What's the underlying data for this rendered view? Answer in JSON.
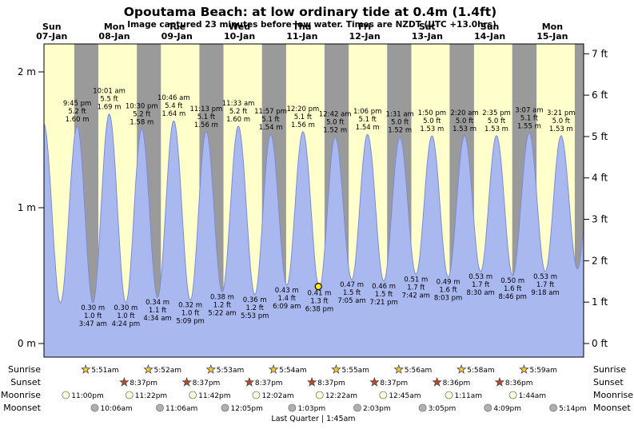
{
  "title": "Opoutama Beach: at low  ordinary tide at 0.4m (1.4ft)",
  "subtitle": "Image captured 23 minutes before low water. Times are NZDT (UTC +13.0hrs)",
  "colors": {
    "day_band": "#ffffcc",
    "night_band": "#9a9a9a",
    "tide_fill": "#aab8f0",
    "tide_stroke": "#7a8cd8",
    "day_label": "#cc1100",
    "current_marker": "#ffee00",
    "sunrise_star": "#ffcc33",
    "sunset_star": "#cc4422",
    "moonrise_icon": "#ffffd8",
    "moonset_icon": "#b0b0b0"
  },
  "axes": {
    "left_ticks": [
      {
        "m": 0,
        "label": "0 m"
      },
      {
        "m": 1,
        "label": "1 m"
      },
      {
        "m": 2,
        "label": "2 m"
      }
    ],
    "right_ticks": [
      {
        "ft": 0,
        "label": "0 ft"
      },
      {
        "ft": 1,
        "label": "1 ft"
      },
      {
        "ft": 2,
        "label": "2 ft"
      },
      {
        "ft": 3,
        "label": "3 ft"
      },
      {
        "ft": 4,
        "label": "4 ft"
      },
      {
        "ft": 5,
        "label": "5 ft"
      },
      {
        "ft": 6,
        "label": "6 ft"
      },
      {
        "ft": 7,
        "label": "7 ft"
      }
    ]
  },
  "days": [
    {
      "dow": "Sun",
      "date": "07-Jan"
    },
    {
      "dow": "Mon",
      "date": "08-Jan"
    },
    {
      "dow": "Tue",
      "date": "09-Jan"
    },
    {
      "dow": "Wed",
      "date": "10-Jan"
    },
    {
      "dow": "Thu",
      "date": "11-Jan"
    },
    {
      "dow": "Fri",
      "date": "12-Jan"
    },
    {
      "dow": "Sat",
      "date": "13-Jan"
    },
    {
      "dow": "Sun",
      "date": "14-Jan"
    },
    {
      "dow": "Mon",
      "date": "15-Jan"
    }
  ],
  "chart_data": {
    "type": "area",
    "x_unit": "hours from 07-Jan 00:00",
    "x_range": [
      9,
      216
    ],
    "y_unit_left": "m",
    "y_unit_right": "ft",
    "ylim_m": [
      -0.1,
      2.2
    ],
    "highs": [
      {
        "t": 21.75,
        "m": 1.6,
        "time": "9:45 pm",
        "ft": "5.2 ft",
        "height": "1.60 m"
      },
      {
        "t": 34.02,
        "m": 1.69,
        "time": "10:01 am",
        "ft": "5.5 ft",
        "height": "1.69 m"
      },
      {
        "t": 46.5,
        "m": 1.58,
        "time": "10:30 pm",
        "ft": "5.2 ft",
        "height": "1.58 m"
      },
      {
        "t": 58.77,
        "m": 1.64,
        "time": "10:46 am",
        "ft": "5.4 ft",
        "height": "1.64 m"
      },
      {
        "t": 71.22,
        "m": 1.56,
        "time": "11:13 pm",
        "ft": "5.1 ft",
        "height": "1.56 m"
      },
      {
        "t": 83.55,
        "m": 1.6,
        "time": "11:33 am",
        "ft": "5.2 ft",
        "height": "1.60 m"
      },
      {
        "t": 95.95,
        "m": 1.54,
        "time": "11:57 pm",
        "ft": "5.1 ft",
        "height": "1.54 m"
      },
      {
        "t": 108.33,
        "m": 1.56,
        "time": "12:20 pm",
        "ft": "5.1 ft",
        "height": "1.56 m"
      },
      {
        "t": 120.7,
        "m": 1.52,
        "time": "12:42 am",
        "ft": "5.0 ft",
        "height": "1.52 m"
      },
      {
        "t": 133.1,
        "m": 1.54,
        "time": "1:06 pm",
        "ft": "5.1 ft",
        "height": "1.54 m"
      },
      {
        "t": 145.52,
        "m": 1.52,
        "time": "1:31 am",
        "ft": "5.0 ft",
        "height": "1.52 m"
      },
      {
        "t": 157.83,
        "m": 1.53,
        "time": "1:50 pm",
        "ft": "5.0 ft",
        "height": "1.53 m"
      },
      {
        "t": 170.33,
        "m": 1.53,
        "time": "2:20 am",
        "ft": "5.0 ft",
        "height": "1.53 m"
      },
      {
        "t": 182.58,
        "m": 1.53,
        "time": "2:35 pm",
        "ft": "5.0 ft",
        "height": "1.53 m"
      },
      {
        "t": 195.12,
        "m": 1.55,
        "time": "3:07 am",
        "ft": "5.1 ft",
        "height": "1.55 m"
      },
      {
        "t": 207.35,
        "m": 1.53,
        "time": "3:21 pm",
        "ft": "5.0 ft",
        "height": "1.53 m"
      }
    ],
    "lows": [
      {
        "t": 27.78,
        "m": 0.3,
        "height": "0.30 m",
        "ft": "1.0 ft",
        "time": "3:47 am"
      },
      {
        "t": 40.4,
        "m": 0.3,
        "height": "0.30 m",
        "ft": "1.0 ft",
        "time": "4:24 pm"
      },
      {
        "t": 52.57,
        "m": 0.34,
        "height": "0.34 m",
        "ft": "1.1 ft",
        "time": "4:34 am"
      },
      {
        "t": 65.15,
        "m": 0.32,
        "height": "0.32 m",
        "ft": "1.0 ft",
        "time": "5:09 pm"
      },
      {
        "t": 77.37,
        "m": 0.38,
        "height": "0.38 m",
        "ft": "1.2 ft",
        "time": "5:22 am"
      },
      {
        "t": 89.88,
        "m": 0.36,
        "height": "0.36 m",
        "ft": "1.2 ft",
        "time": "5:53 pm"
      },
      {
        "t": 102.15,
        "m": 0.43,
        "height": "0.43 m",
        "ft": "1.4 ft",
        "time": "6:09 am"
      },
      {
        "t": 114.63,
        "m": 0.41,
        "height": "0.41 m",
        "ft": "1.3 ft",
        "time": "6:38 pm",
        "current": true
      },
      {
        "t": 127.08,
        "m": 0.47,
        "height": "0.47 m",
        "ft": "1.5 ft",
        "time": "7:05 am"
      },
      {
        "t": 139.35,
        "m": 0.46,
        "height": "0.46 m",
        "ft": "1.5 ft",
        "time": "7:21 pm"
      },
      {
        "t": 151.7,
        "m": 0.51,
        "height": "0.51 m",
        "ft": "1.7 ft",
        "time": "7:42 am"
      },
      {
        "t": 164.05,
        "m": 0.49,
        "height": "0.49 m",
        "ft": "1.6 ft",
        "time": "8:03 pm"
      },
      {
        "t": 176.5,
        "m": 0.53,
        "height": "0.53 m",
        "ft": "1.7 ft",
        "time": "8:30 am"
      },
      {
        "t": 188.77,
        "m": 0.5,
        "height": "0.50 m",
        "ft": "1.6 ft",
        "time": "8:46 pm"
      },
      {
        "t": 201.3,
        "m": 0.53,
        "height": "0.53 m",
        "ft": "1.7 ft",
        "time": "9:18 am"
      }
    ],
    "edge_extremes": [
      {
        "t": 8.9,
        "m": 1.62
      },
      {
        "t": 15.3,
        "m": 0.3
      },
      {
        "t": 213.6,
        "m": 0.55
      },
      {
        "t": 219.9,
        "m": 1.55
      }
    ],
    "current_marker": {
      "t": 114.25,
      "m": 0.42
    },
    "bands": [
      {
        "from": 9,
        "to": 20.62,
        "kind": "day"
      },
      {
        "from": 20.62,
        "to": 29.85,
        "kind": "night"
      },
      {
        "from": 29.85,
        "to": 44.62,
        "kind": "day"
      },
      {
        "from": 44.62,
        "to": 53.87,
        "kind": "night"
      },
      {
        "from": 53.87,
        "to": 68.62,
        "kind": "day"
      },
      {
        "from": 68.62,
        "to": 77.88,
        "kind": "night"
      },
      {
        "from": 77.88,
        "to": 92.62,
        "kind": "day"
      },
      {
        "from": 92.62,
        "to": 101.9,
        "kind": "night"
      },
      {
        "from": 101.9,
        "to": 116.62,
        "kind": "day"
      },
      {
        "from": 116.62,
        "to": 125.92,
        "kind": "night"
      },
      {
        "from": 125.92,
        "to": 140.62,
        "kind": "day"
      },
      {
        "from": 140.62,
        "to": 149.93,
        "kind": "night"
      },
      {
        "from": 149.93,
        "to": 164.6,
        "kind": "day"
      },
      {
        "from": 164.6,
        "to": 173.97,
        "kind": "night"
      },
      {
        "from": 173.97,
        "to": 188.6,
        "kind": "day"
      },
      {
        "from": 188.6,
        "to": 197.98,
        "kind": "night"
      },
      {
        "from": 197.98,
        "to": 212.6,
        "kind": "day"
      },
      {
        "from": 212.6,
        "to": 216,
        "kind": "night"
      }
    ]
  },
  "astro": {
    "rows": [
      {
        "name": "sunrise",
        "label": "Sunrise",
        "icon": "sunrise-star",
        "entries": [
          {
            "t": 29.85,
            "time": "5:51am"
          },
          {
            "t": 53.87,
            "time": "5:52am"
          },
          {
            "t": 77.88,
            "time": "5:53am"
          },
          {
            "t": 101.9,
            "time": "5:54am"
          },
          {
            "t": 125.92,
            "time": "5:55am"
          },
          {
            "t": 149.93,
            "time": "5:56am"
          },
          {
            "t": 173.97,
            "time": "5:58am"
          },
          {
            "t": 197.98,
            "time": "5:59am"
          }
        ]
      },
      {
        "name": "sunset",
        "label": "Sunset",
        "icon": "sunset-star",
        "entries": [
          {
            "t": 44.62,
            "time": "8:37pm"
          },
          {
            "t": 68.62,
            "time": "8:37pm"
          },
          {
            "t": 92.62,
            "time": "8:37pm"
          },
          {
            "t": 116.62,
            "time": "8:37pm"
          },
          {
            "t": 140.62,
            "time": "8:37pm"
          },
          {
            "t": 164.6,
            "time": "8:36pm"
          },
          {
            "t": 188.6,
            "time": "8:36pm"
          }
        ]
      },
      {
        "name": "moonrise",
        "label": "Moonrise",
        "icon": "moon-light",
        "entries": [
          {
            "t": 23.0,
            "time": "11:00pm"
          },
          {
            "t": 47.37,
            "time": "11:22pm"
          },
          {
            "t": 71.7,
            "time": "11:42pm"
          },
          {
            "t": 96.03,
            "time": "12:02am"
          },
          {
            "t": 120.37,
            "time": "12:22am"
          },
          {
            "t": 144.75,
            "time": "12:45am"
          },
          {
            "t": 169.18,
            "time": "1:11am"
          },
          {
            "t": 193.73,
            "time": "1:44am"
          }
        ]
      },
      {
        "name": "moonset",
        "label": "Moonset",
        "icon": "moon-gray",
        "entries": [
          {
            "t": 34.1,
            "time": "10:06am"
          },
          {
            "t": 59.1,
            "time": "11:06am"
          },
          {
            "t": 84.08,
            "time": "12:05pm"
          },
          {
            "t": 109.05,
            "time": "1:03pm"
          },
          {
            "t": 134.05,
            "time": "2:03pm"
          },
          {
            "t": 159.08,
            "time": "3:05pm"
          },
          {
            "t": 184.15,
            "time": "4:09pm"
          },
          {
            "t": 209.23,
            "time": "5:14pm"
          }
        ]
      }
    ],
    "moon_phase": "Last Quarter | 1:45am"
  }
}
